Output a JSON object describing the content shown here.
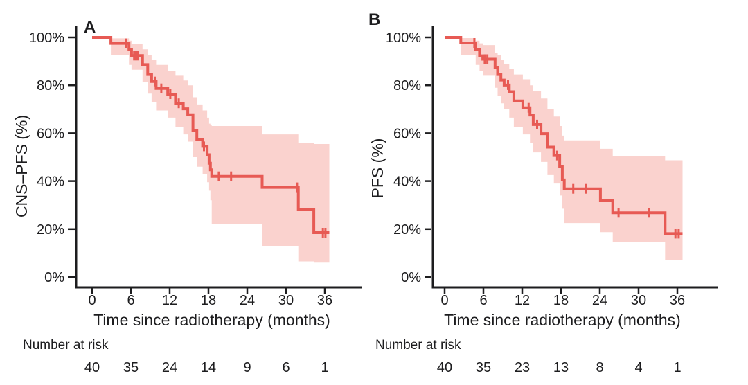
{
  "figure": {
    "background": "#ffffff",
    "axis_color": "#1d1d1f",
    "text_color": "#1d1d1f"
  },
  "chart_data": [
    {
      "type": "line",
      "subtype": "kaplan-meier-step",
      "panel_label": "A",
      "title": "",
      "xlabel": "Time since radiotherapy (months)",
      "ylabel": "CNS–PFS (%)",
      "xlim": [
        0,
        38
      ],
      "ylim": [
        0,
        100
      ],
      "grid": false,
      "legend": "none",
      "xticks": [
        0,
        6,
        12,
        18,
        24,
        30,
        36
      ],
      "yticks": [
        [
          100,
          "100%"
        ],
        [
          80,
          "80%"
        ],
        [
          60,
          "60%"
        ],
        [
          40,
          "40%"
        ],
        [
          20,
          "20%"
        ],
        [
          0,
          "0%"
        ]
      ],
      "color": "#e75a54",
      "ci_color": "#fad2ce",
      "end_month": 36.7,
      "steps": [
        [
          0,
          100
        ],
        [
          2.9,
          97.5
        ],
        [
          5.7,
          95.1
        ],
        [
          6.1,
          92.4
        ],
        [
          7.8,
          88.6
        ],
        [
          8.6,
          84.5
        ],
        [
          9.2,
          81.6
        ],
        [
          9.9,
          78.7
        ],
        [
          11.7,
          76.3
        ],
        [
          12.9,
          72.5
        ],
        [
          14.1,
          70.2
        ],
        [
          14.8,
          67.7
        ],
        [
          15.6,
          61.2
        ],
        [
          16.2,
          57.4
        ],
        [
          17.1,
          54.5
        ],
        [
          17.8,
          51.0
        ],
        [
          18.1,
          47.5
        ],
        [
          18.3,
          44.7
        ],
        [
          18.5,
          42.0
        ],
        [
          26.3,
          37.4
        ],
        [
          31.9,
          28.3
        ],
        [
          34.3,
          18.5
        ]
      ],
      "censor_marks": [
        [
          5.3,
          97.5
        ],
        [
          6.5,
          92.4
        ],
        [
          6.8,
          92.4
        ],
        [
          7.1,
          92.4
        ],
        [
          9.7,
          81.6
        ],
        [
          10.7,
          78.7
        ],
        [
          12.1,
          76.3
        ],
        [
          13.4,
          72.5
        ],
        [
          17.3,
          54.5
        ],
        [
          19.6,
          42.0
        ],
        [
          21.5,
          42.0
        ],
        [
          31.7,
          37.4
        ],
        [
          35.7,
          18.5
        ],
        [
          36.1,
          18.5
        ]
      ],
      "ci": [
        [
          2.9,
          92.5,
          99.6
        ],
        [
          5.7,
          88.5,
          98.6
        ],
        [
          6.1,
          86.5,
          97.2
        ],
        [
          7.8,
          81.5,
          95.0
        ],
        [
          8.6,
          76.5,
          92.5
        ],
        [
          9.2,
          73.0,
          90.5
        ],
        [
          9.9,
          69.5,
          88.5
        ],
        [
          11.7,
          66.5,
          86.0
        ],
        [
          12.9,
          62.5,
          84.0
        ],
        [
          14.1,
          59.5,
          82.0
        ],
        [
          14.8,
          56.5,
          80.0
        ],
        [
          15.6,
          50.0,
          75.0
        ],
        [
          16.2,
          46.0,
          72.0
        ],
        [
          17.1,
          43.0,
          69.5
        ],
        [
          17.8,
          39.5,
          66.5
        ],
        [
          18.1,
          36.0,
          64.0
        ],
        [
          18.3,
          32.0,
          63.5
        ],
        [
          18.5,
          22.0,
          63.0
        ],
        [
          26.3,
          13.0,
          59.5
        ],
        [
          31.9,
          6.5,
          56.0
        ],
        [
          34.3,
          6.0,
          55.5
        ]
      ],
      "risk_label": "Number at risk",
      "risk_times": [
        0,
        6,
        12,
        18,
        24,
        30,
        36
      ],
      "risk_counts": [
        40,
        35,
        24,
        14,
        9,
        6,
        1
      ]
    },
    {
      "type": "line",
      "subtype": "kaplan-meier-step",
      "panel_label": "B",
      "title": "",
      "xlabel": "Time since radiotherapy (months)",
      "ylabel": "PFS (%)",
      "xlim": [
        0,
        38
      ],
      "ylim": [
        0,
        100
      ],
      "grid": false,
      "legend": "none",
      "xticks": [
        0,
        6,
        12,
        18,
        24,
        30,
        36
      ],
      "yticks": [
        [
          100,
          "100%"
        ],
        [
          80,
          "80%"
        ],
        [
          60,
          "60%"
        ],
        [
          40,
          "40%"
        ],
        [
          20,
          "20%"
        ],
        [
          0,
          "0%"
        ]
      ],
      "color": "#e75a54",
      "ci_color": "#fad2ce",
      "end_month": 36.8,
      "steps": [
        [
          0,
          100
        ],
        [
          2.5,
          97.7
        ],
        [
          4.8,
          94.9
        ],
        [
          5.4,
          92.3
        ],
        [
          5.9,
          90.9
        ],
        [
          7.8,
          87.5
        ],
        [
          8.2,
          84.5
        ],
        [
          8.7,
          82.2
        ],
        [
          9.2,
          80.1
        ],
        [
          10.0,
          77.3
        ],
        [
          10.7,
          73.5
        ],
        [
          12.1,
          70.6
        ],
        [
          13.2,
          67.6
        ],
        [
          13.7,
          63.6
        ],
        [
          14.9,
          59.8
        ],
        [
          15.9,
          54.2
        ],
        [
          16.9,
          50.7
        ],
        [
          17.8,
          46.0
        ],
        [
          18.2,
          40.5
        ],
        [
          18.5,
          36.8
        ],
        [
          24.1,
          31.8
        ],
        [
          26.0,
          26.8
        ],
        [
          34.1,
          18.1
        ]
      ],
      "censor_marks": [
        [
          4.6,
          97.7
        ],
        [
          6.2,
          90.9
        ],
        [
          6.6,
          90.9
        ],
        [
          9.8,
          80.1
        ],
        [
          13.0,
          70.6
        ],
        [
          14.3,
          63.6
        ],
        [
          17.4,
          50.7
        ],
        [
          19.9,
          36.8
        ],
        [
          21.8,
          36.8
        ],
        [
          26.9,
          26.8
        ],
        [
          31.6,
          26.8
        ],
        [
          35.7,
          18.1
        ],
        [
          36.2,
          18.1
        ]
      ],
      "ci": [
        [
          2.5,
          92.7,
          99.7
        ],
        [
          4.8,
          88.5,
          98.6
        ],
        [
          5.4,
          86.0,
          97.5
        ],
        [
          5.9,
          84.0,
          96.8
        ],
        [
          7.8,
          79.0,
          93.5
        ],
        [
          8.2,
          75.5,
          92.5
        ],
        [
          8.7,
          72.5,
          90.5
        ],
        [
          9.2,
          70.0,
          89.0
        ],
        [
          10.0,
          66.5,
          87.0
        ],
        [
          10.7,
          62.5,
          84.5
        ],
        [
          12.1,
          59.5,
          82.5
        ],
        [
          13.2,
          56.0,
          80.0
        ],
        [
          13.7,
          52.0,
          77.5
        ],
        [
          14.9,
          48.0,
          74.5
        ],
        [
          15.9,
          42.5,
          70.0
        ],
        [
          16.9,
          39.0,
          67.0
        ],
        [
          17.8,
          34.0,
          63.0
        ],
        [
          18.2,
          28.5,
          59.0
        ],
        [
          18.5,
          22.5,
          57.0
        ],
        [
          24.1,
          18.7,
          53.5
        ],
        [
          26.0,
          14.6,
          50.5
        ],
        [
          34.1,
          7.0,
          48.7
        ]
      ],
      "risk_label": "Number at risk",
      "risk_times": [
        0,
        6,
        12,
        18,
        24,
        30,
        36
      ],
      "risk_counts": [
        40,
        35,
        23,
        13,
        8,
        4,
        1
      ]
    }
  ]
}
